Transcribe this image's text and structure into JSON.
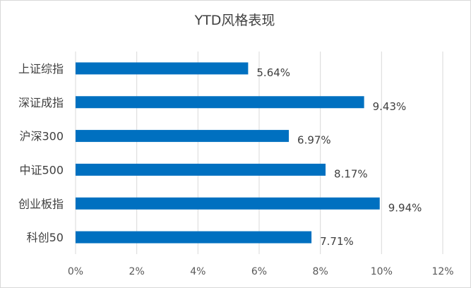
{
  "chart_data": {
    "type": "bar",
    "orientation": "horizontal",
    "title": "YTD风格表现",
    "categories": [
      "上证综指",
      "深证成指",
      "沪深300",
      "中证500",
      "创业板指",
      "科创50"
    ],
    "values": [
      5.64,
      9.43,
      6.97,
      8.17,
      9.94,
      7.71
    ],
    "data_labels": [
      "5.64%",
      "9.43%",
      "6.97%",
      "8.17%",
      "9.94%",
      "7.71%"
    ],
    "xlim": [
      0,
      12
    ],
    "x_ticks": [
      0,
      2,
      4,
      6,
      8,
      10,
      12
    ],
    "x_tick_labels": [
      "0%",
      "2%",
      "4%",
      "6%",
      "8%",
      "10%",
      "12%"
    ],
    "xlabel": "",
    "ylabel": "",
    "grid": true,
    "legend": "none",
    "colors": {
      "bar": "#0070c0",
      "grid": "#d9d9d9",
      "text": "#404040"
    }
  }
}
